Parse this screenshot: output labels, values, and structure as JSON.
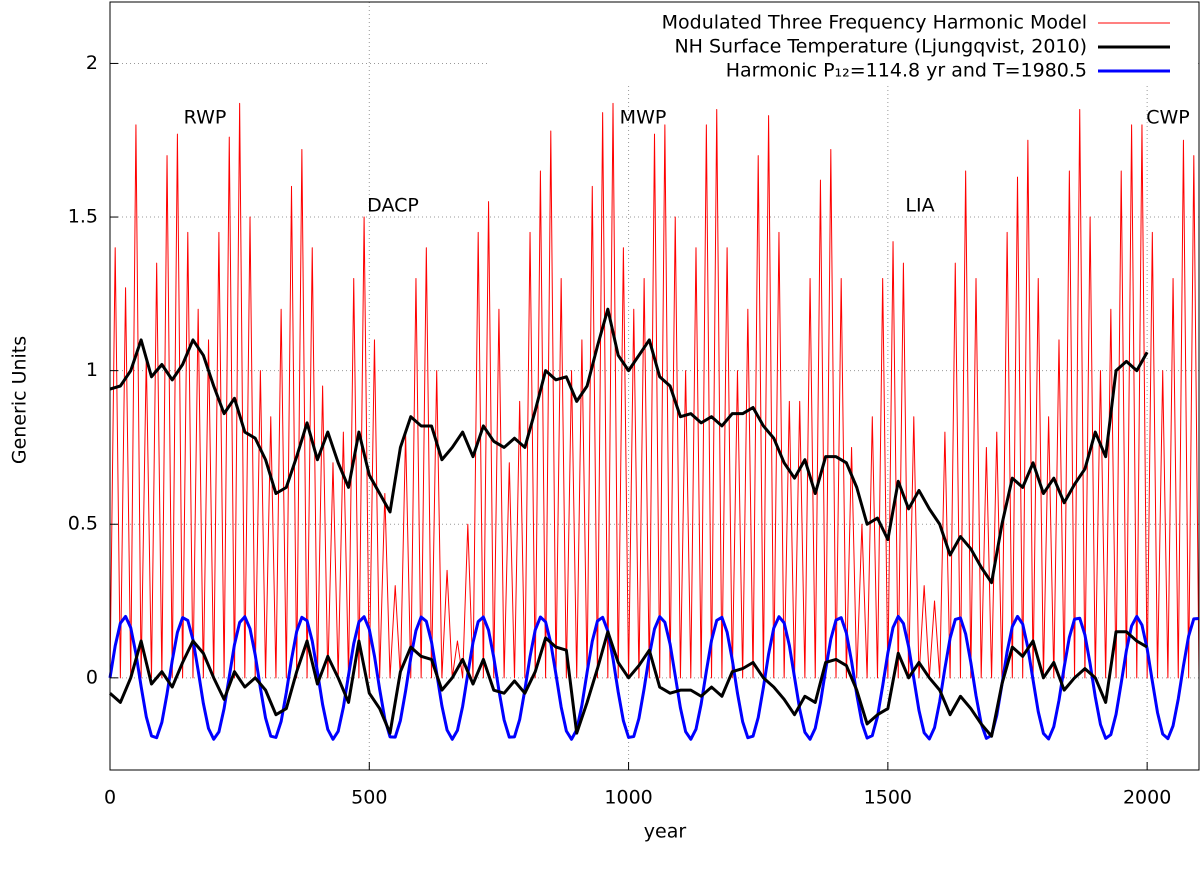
{
  "chart_data": {
    "type": "line",
    "xlabel": "year",
    "ylabel": "Generic Units",
    "xlim": [
      0,
      2100
    ],
    "ylim": [
      -0.3,
      2.2
    ],
    "xticks": [
      0,
      500,
      1000,
      1500,
      2000
    ],
    "yticks": [
      0,
      0.5,
      1,
      1.5,
      2
    ],
    "grid": true,
    "legend": "upper right",
    "annotations": [
      "RWP",
      "DACP",
      "MWP",
      "LIA",
      "CWP"
    ],
    "x": [
      0,
      10,
      20,
      30,
      40,
      50,
      60,
      70,
      80,
      90,
      100,
      110,
      120,
      130,
      140,
      150,
      160,
      170,
      180,
      190,
      200,
      210,
      220,
      230,
      240,
      250,
      260,
      270,
      280,
      290,
      300,
      310,
      320,
      330,
      340,
      350,
      360,
      370,
      380,
      390,
      400,
      410,
      420,
      430,
      440,
      450,
      460,
      470,
      480,
      490,
      500,
      510,
      520,
      530,
      540,
      550,
      560,
      570,
      580,
      590,
      600,
      610,
      620,
      630,
      640,
      650,
      660,
      670,
      680,
      690,
      700,
      710,
      720,
      730,
      740,
      750,
      760,
      770,
      780,
      790,
      800,
      810,
      820,
      830,
      840,
      850,
      860,
      870,
      880,
      890,
      900,
      910,
      920,
      930,
      940,
      950,
      960,
      970,
      980,
      990,
      1000,
      1010,
      1020,
      1030,
      1040,
      1050,
      1060,
      1070,
      1080,
      1090,
      1100,
      1110,
      1120,
      1130,
      1140,
      1150,
      1160,
      1170,
      1180,
      1190,
      1200,
      1210,
      1220,
      1230,
      1240,
      1250,
      1260,
      1270,
      1280,
      1290,
      1300,
      1310,
      1320,
      1330,
      1340,
      1350,
      1360,
      1370,
      1380,
      1390,
      1400,
      1410,
      1420,
      1430,
      1440,
      1450,
      1460,
      1470,
      1480,
      1490,
      1500,
      1510,
      1520,
      1530,
      1540,
      1550,
      1560,
      1570,
      1580,
      1590,
      1600,
      1610,
      1620,
      1630,
      1640,
      1650,
      1660,
      1670,
      1680,
      1690,
      1700,
      1710,
      1720,
      1730,
      1740,
      1750,
      1760,
      1770,
      1780,
      1790,
      1800,
      1810,
      1820,
      1830,
      1840,
      1850,
      1860,
      1870,
      1880,
      1890,
      1900,
      1910,
      1920,
      1930,
      1940,
      1950,
      1960,
      1970,
      1980,
      1990,
      2000,
      2010,
      2020,
      2030,
      2040,
      2050,
      2060,
      2070,
      2080,
      2090,
      2100
    ],
    "series": [
      {
        "name": "Modulated Three Frequency Harmonic Model",
        "color": "#ff0000",
        "width": 1,
        "values": [
          0,
          1.4,
          0,
          1.27,
          0,
          1.8,
          0,
          1.05,
          0,
          1.35,
          0,
          1.7,
          0,
          1.77,
          0,
          1.45,
          0,
          1.2,
          0,
          1.1,
          0,
          1.45,
          0,
          1.76,
          0,
          1.87,
          0,
          1.5,
          0,
          1.0,
          0,
          0.85,
          0,
          1.2,
          0,
          1.6,
          0,
          1.72,
          0,
          1.4,
          0,
          0.95,
          0,
          0.7,
          0,
          0.8,
          0,
          1.3,
          0,
          1.5,
          0,
          1.1,
          0,
          0.6,
          0,
          0.3,
          0,
          0.8,
          0,
          1.3,
          0,
          1.4,
          0,
          1.0,
          0,
          0.35,
          0,
          0.12,
          0,
          0.5,
          0,
          1.45,
          0,
          1.55,
          0,
          1.2,
          0,
          0.7,
          0,
          0.9,
          0,
          1.45,
          0,
          1.65,
          0,
          1.78,
          0,
          1.3,
          0,
          1.0,
          0,
          1.1,
          0,
          1.6,
          0,
          1.84,
          0,
          1.87,
          0,
          1.4,
          0,
          1.2,
          0,
          1.3,
          0,
          1.77,
          0,
          1.8,
          0,
          1.5,
          0,
          1.0,
          0,
          1.4,
          0,
          1.8,
          0,
          1.85,
          0,
          1.4,
          0,
          1.0,
          0,
          1.2,
          0,
          1.7,
          0,
          1.83,
          0,
          1.45,
          0,
          0.9,
          0,
          0.9,
          0,
          1.3,
          0,
          1.62,
          0,
          1.72,
          0,
          1.3,
          0,
          0.75,
          0,
          0.5,
          0,
          0.85,
          0,
          1.3,
          0,
          1.42,
          0,
          1.35,
          0,
          0.85,
          0,
          0.3,
          0,
          0.25,
          0,
          0.8,
          0,
          1.35,
          0,
          1.65,
          0,
          1.3,
          0,
          0.75,
          0,
          0.8,
          0,
          1.45,
          0,
          1.63,
          0,
          1.75,
          0,
          1.3,
          0,
          0.85,
          0,
          1.1,
          0,
          1.65,
          0,
          1.85,
          0,
          1.5,
          0,
          1.0,
          0,
          1.2,
          0,
          1.65,
          0,
          1.8,
          0,
          1.8,
          0,
          1.45,
          0,
          1.0,
          0,
          1.3,
          0,
          1.75,
          0,
          1.7,
          0
        ]
      },
      {
        "name": "NH Surface Temperature (Ljungqvist, 2010)",
        "color": "#000000",
        "width": 3,
        "x": [
          0,
          20,
          40,
          60,
          80,
          100,
          120,
          140,
          160,
          180,
          200,
          220,
          240,
          260,
          280,
          300,
          320,
          340,
          360,
          380,
          400,
          420,
          440,
          460,
          480,
          500,
          520,
          540,
          560,
          580,
          600,
          620,
          640,
          660,
          680,
          700,
          720,
          740,
          760,
          780,
          800,
          820,
          840,
          860,
          880,
          900,
          920,
          940,
          960,
          980,
          1000,
          1020,
          1040,
          1060,
          1080,
          1100,
          1120,
          1140,
          1160,
          1180,
          1200,
          1220,
          1240,
          1260,
          1280,
          1300,
          1320,
          1340,
          1360,
          1380,
          1400,
          1420,
          1440,
          1460,
          1480,
          1500,
          1520,
          1540,
          1560,
          1580,
          1600,
          1620,
          1640,
          1660,
          1680,
          1700,
          1720,
          1740,
          1760,
          1780,
          1800,
          1820,
          1840,
          1860,
          1880,
          1900,
          1920,
          1940,
          1960,
          1980,
          2000
        ],
        "values": [
          0.94,
          0.95,
          1.0,
          1.1,
          0.98,
          1.02,
          0.97,
          1.02,
          1.1,
          1.05,
          0.95,
          0.86,
          0.91,
          0.8,
          0.78,
          0.71,
          0.6,
          0.62,
          0.72,
          0.83,
          0.71,
          0.8,
          0.7,
          0.62,
          0.8,
          0.66,
          0.6,
          0.54,
          0.75,
          0.85,
          0.82,
          0.82,
          0.71,
          0.75,
          0.8,
          0.72,
          0.82,
          0.77,
          0.75,
          0.78,
          0.75,
          0.87,
          1.0,
          0.97,
          0.98,
          0.9,
          0.95,
          1.08,
          1.2,
          1.05,
          1.0,
          1.05,
          1.1,
          0.98,
          0.95,
          0.85,
          0.86,
          0.83,
          0.85,
          0.82,
          0.86,
          0.86,
          0.88,
          0.82,
          0.78,
          0.7,
          0.65,
          0.71,
          0.6,
          0.72,
          0.72,
          0.7,
          0.62,
          0.5,
          0.52,
          0.45,
          0.64,
          0.55,
          0.61,
          0.55,
          0.5,
          0.4,
          0.46,
          0.42,
          0.36,
          0.31,
          0.5,
          0.65,
          0.62,
          0.7,
          0.6,
          0.65,
          0.57,
          0.63,
          0.68,
          0.8,
          0.72,
          1.0,
          1.03,
          1.0,
          1.06
        ]
      },
      {
        "name": "Harmonic P₁₂=114.8 yr and T=1980.5",
        "color": "#0000ff",
        "width": 3,
        "values": [
          0,
          0.104,
          0.178,
          0.2,
          0.163,
          0.079,
          -0.028,
          -0.127,
          -0.189,
          -0.195,
          -0.145,
          -0.052,
          0.056,
          0.148,
          0.196,
          0.187,
          0.124,
          0.024,
          -0.083,
          -0.165,
          -0.2,
          -0.176,
          -0.1,
          0.004,
          0.108,
          0.18,
          0.199,
          0.16,
          0.075,
          -0.033,
          -0.131,
          -0.19,
          -0.194,
          -0.142,
          -0.048,
          0.06,
          0.151,
          0.197,
          0.186,
          0.12,
          0.02,
          -0.087,
          -0.168,
          -0.2,
          -0.174,
          -0.096,
          0.009,
          0.111,
          0.182,
          0.199,
          0.158,
          0.071,
          -0.037,
          -0.134,
          -0.192,
          -0.193,
          -0.139,
          -0.043,
          0.065,
          0.154,
          0.198,
          0.184,
          0.117,
          0.015,
          -0.091,
          -0.17,
          -0.2,
          -0.171,
          -0.093,
          0.013,
          0.115,
          0.183,
          0.198,
          0.155,
          0.067,
          -0.041,
          -0.137,
          -0.193,
          -0.192,
          -0.136,
          -0.039,
          0.069,
          0.156,
          0.198,
          0.182,
          0.113,
          0.011,
          -0.095,
          -0.173,
          -0.2,
          -0.169,
          -0.089,
          0.018,
          0.119,
          0.185,
          0.197,
          0.152,
          0.062,
          -0.046,
          -0.14,
          -0.194,
          -0.191,
          -0.132,
          -0.035,
          0.073,
          0.159,
          0.199,
          0.181,
          0.11,
          0.007,
          -0.098,
          -0.175,
          -0.2,
          -0.167,
          -0.085,
          0.022,
          0.122,
          0.187,
          0.197,
          0.149,
          0.058,
          -0.05,
          -0.143,
          -0.195,
          -0.19,
          -0.129,
          -0.031,
          0.077,
          0.162,
          0.199,
          0.179,
          0.106,
          0.002,
          -0.102,
          -0.177,
          -0.2,
          -0.164,
          -0.081,
          0.026,
          0.126,
          0.188,
          0.196,
          0.146,
          0.054,
          -0.054,
          -0.146,
          -0.196,
          -0.188,
          -0.126,
          -0.026,
          0.081,
          0.164,
          0.2,
          0.177,
          0.102,
          -0.002,
          -0.106,
          -0.179,
          -0.199,
          -0.162,
          -0.077,
          0.031,
          0.129,
          0.19,
          0.195,
          0.143,
          0.05,
          -0.058,
          -0.149,
          -0.197,
          -0.187,
          -0.122,
          -0.022,
          0.085,
          0.167,
          0.2,
          0.175,
          0.098,
          -0.007,
          -0.11,
          -0.181,
          -0.199,
          -0.159,
          -0.073,
          0.035,
          0.132,
          0.191,
          0.194,
          0.14,
          0.046,
          -0.062,
          -0.152,
          -0.197,
          -0.185,
          -0.119,
          -0.017,
          0.089,
          0.169,
          0.2,
          0.172,
          0.095,
          -0.011,
          -0.113,
          -0.183,
          -0.198,
          -0.156,
          -0.069,
          0.039,
          0.136,
          0.192,
          0.193
        ]
      },
      {
        "color": "#000000",
        "width": 3,
        "x": [
          0,
          20,
          40,
          60,
          80,
          100,
          120,
          140,
          160,
          180,
          200,
          220,
          240,
          260,
          280,
          300,
          320,
          340,
          360,
          380,
          400,
          420,
          440,
          460,
          480,
          500,
          520,
          540,
          560,
          580,
          600,
          620,
          640,
          660,
          680,
          700,
          720,
          740,
          760,
          780,
          800,
          820,
          840,
          860,
          880,
          900,
          920,
          940,
          960,
          980,
          1000,
          1020,
          1040,
          1060,
          1080,
          1100,
          1120,
          1140,
          1160,
          1180,
          1200,
          1220,
          1240,
          1260,
          1280,
          1300,
          1320,
          1340,
          1360,
          1380,
          1400,
          1420,
          1440,
          1460,
          1480,
          1500,
          1520,
          1540,
          1560,
          1580,
          1600,
          1620,
          1640,
          1660,
          1680,
          1700,
          1720,
          1740,
          1760,
          1780,
          1800,
          1820,
          1840,
          1860,
          1880,
          1900,
          1920,
          1940,
          1960,
          1980,
          2000
        ],
        "values": [
          -0.05,
          -0.08,
          0.0,
          0.12,
          -0.02,
          0.02,
          -0.03,
          0.05,
          0.12,
          0.08,
          0.0,
          -0.07,
          0.02,
          -0.03,
          0.0,
          -0.04,
          -0.12,
          -0.1,
          0.02,
          0.12,
          -0.02,
          0.07,
          0.0,
          -0.08,
          0.12,
          -0.05,
          -0.1,
          -0.18,
          0.02,
          0.1,
          0.07,
          0.06,
          -0.04,
          0.0,
          0.06,
          -0.02,
          0.06,
          -0.04,
          -0.05,
          -0.01,
          -0.05,
          0.02,
          0.13,
          0.1,
          0.09,
          -0.18,
          -0.08,
          0.03,
          0.15,
          0.05,
          0.0,
          0.04,
          0.09,
          -0.03,
          -0.05,
          -0.04,
          -0.04,
          -0.06,
          -0.03,
          -0.06,
          0.02,
          0.03,
          0.05,
          0.0,
          -0.03,
          -0.07,
          -0.12,
          -0.06,
          -0.08,
          0.05,
          0.06,
          0.04,
          -0.04,
          -0.15,
          -0.12,
          -0.1,
          0.08,
          0.0,
          0.05,
          0.0,
          -0.04,
          -0.12,
          -0.06,
          -0.1,
          -0.15,
          -0.19,
          -0.02,
          0.1,
          0.07,
          0.12,
          0.0,
          0.05,
          -0.04,
          0.0,
          0.03,
          0.0,
          -0.08,
          0.15,
          0.15,
          0.12,
          0.1
        ]
      }
    ]
  }
}
